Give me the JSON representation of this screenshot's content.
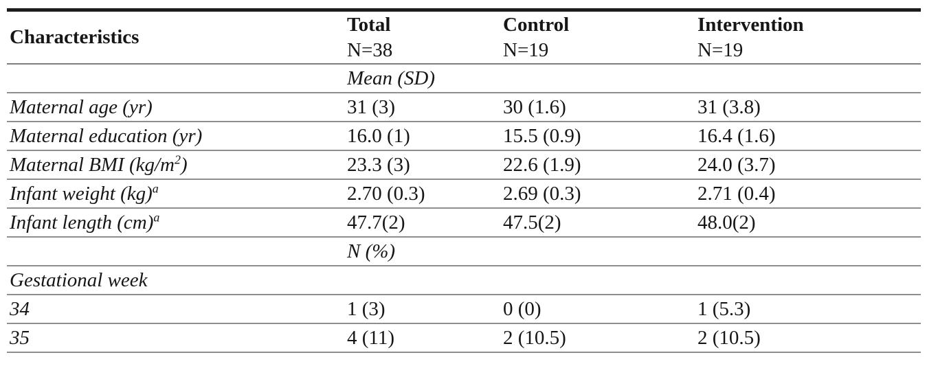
{
  "table": {
    "corner_header": "Characteristics",
    "columns": [
      {
        "label": "Total",
        "sub": "N=38"
      },
      {
        "label": "Control",
        "sub": "N=19"
      },
      {
        "label": "Intervention",
        "sub": "N=19"
      }
    ],
    "rows": [
      {
        "kind": "section",
        "label": {
          "pre": "",
          "sup": "",
          "post": ""
        },
        "values": [
          "Mean (SD)",
          "",
          ""
        ]
      },
      {
        "kind": "data",
        "label": {
          "pre": "Maternal age (yr)",
          "sup": "",
          "post": ""
        },
        "values": [
          "31 (3)",
          "30 (1.6)",
          "31 (3.8)"
        ]
      },
      {
        "kind": "data",
        "label": {
          "pre": "Maternal education (yr)",
          "sup": "",
          "post": ""
        },
        "values": [
          "16.0 (1)",
          "15.5 (0.9)",
          "16.4 (1.6)"
        ]
      },
      {
        "kind": "data",
        "label": {
          "pre": "Maternal BMI (kg/m",
          "sup": "2",
          "post": ")"
        },
        "values": [
          "23.3 (3)",
          "22.6 (1.9)",
          "24.0 (3.7)"
        ]
      },
      {
        "kind": "data",
        "label": {
          "pre": "Infant weight (kg)",
          "sup": "a",
          "post": ""
        },
        "values": [
          "2.70 (0.3)",
          "2.69 (0.3)",
          "2.71 (0.4)"
        ]
      },
      {
        "kind": "data",
        "label": {
          "pre": "Infant length (cm)",
          "sup": "a",
          "post": ""
        },
        "values": [
          "47.7(2)",
          "47.5(2)",
          "48.0(2)"
        ]
      },
      {
        "kind": "section",
        "label": {
          "pre": "",
          "sup": "",
          "post": ""
        },
        "values": [
          "N (%)",
          "",
          ""
        ]
      },
      {
        "kind": "group",
        "label": {
          "pre": "Gestational week",
          "sup": "",
          "post": ""
        },
        "values": [
          "",
          "",
          ""
        ]
      },
      {
        "kind": "data",
        "label": {
          "pre": "34",
          "sup": "",
          "post": ""
        },
        "values": [
          "1 (3)",
          "0 (0)",
          "1 (5.3)"
        ]
      },
      {
        "kind": "data",
        "label": {
          "pre": "35",
          "sup": "",
          "post": ""
        },
        "values": [
          "4 (11)",
          "2 (10.5)",
          "2 (10.5)"
        ]
      }
    ]
  },
  "colors": {
    "heavy_rule": "#1c1c1c",
    "light_rule": "#8f8f8f",
    "text": "#161616"
  }
}
